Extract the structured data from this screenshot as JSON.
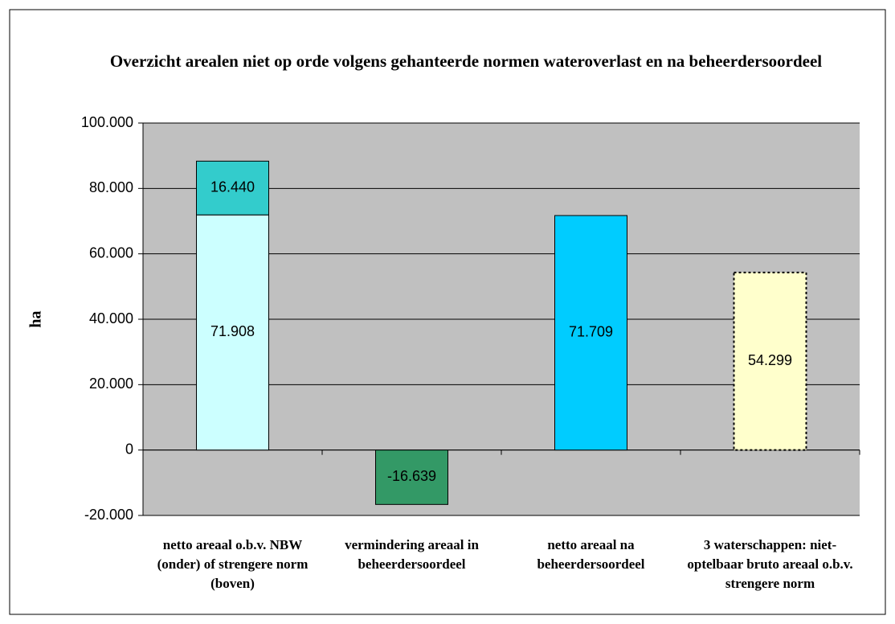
{
  "chart_data": {
    "type": "stacked_bar",
    "title": "Overzicht arealen niet op orde volgens gehanteerde normen wateroverlast en na beheerdersoordeel",
    "ylabel": "ha",
    "categories": [
      "netto areaal o.b.v. NBW (onder) of strengere norm (boven)",
      "vermindering areaal in beheerdersoordeel",
      "netto areaal na beheerdersoordeel",
      "3 waterschappen: niet-optelbaar bruto areaal o.b.v. strengere norm"
    ],
    "series": [
      {
        "colors": [
          "#ccffff",
          "#339966",
          "#00ccff",
          "#ffffcc"
        ],
        "dashed": [
          false,
          false,
          false,
          true
        ],
        "values": [
          71908,
          -16639,
          71709,
          54299
        ],
        "value_labels": [
          "71.908",
          "-16.639",
          "71.709",
          "54.299"
        ]
      },
      {
        "color": "#33cccc",
        "values": [
          16440,
          null,
          null,
          null
        ],
        "value_labels": [
          "16.440",
          null,
          null,
          null
        ]
      }
    ],
    "ylim": [
      -20000,
      100000
    ],
    "yticks": [
      {
        "value": -20000,
        "label": "-20.000"
      },
      0,
      {
        "value": 20000,
        "label": "20.000"
      },
      {
        "value": 40000,
        "label": "40.000"
      },
      {
        "value": 60000,
        "label": "60.000"
      },
      {
        "value": 80000,
        "label": "80.000"
      },
      {
        "value": 100000,
        "label": "100.000"
      }
    ],
    "grid": true,
    "plot_background": "#c0c0c0"
  }
}
